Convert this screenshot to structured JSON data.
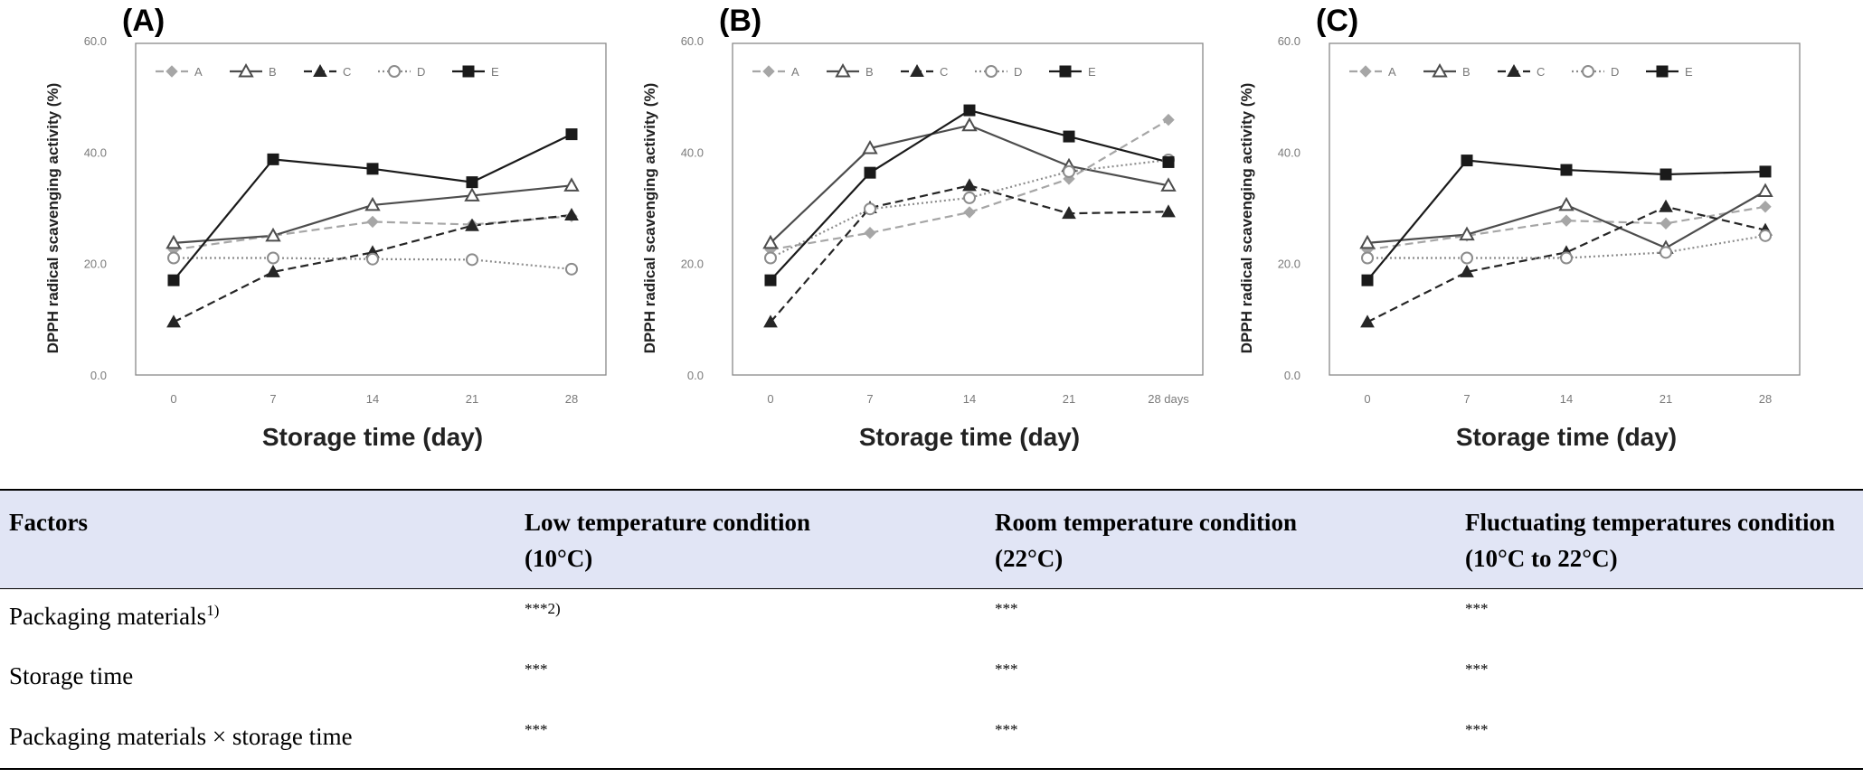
{
  "chart_data": [
    {
      "type": "line",
      "panel": "(A)",
      "xlabel": "Storage time (day)",
      "ylabel": "DPPH radical scavenging activity (%)",
      "categories": [
        "0",
        "7",
        "14",
        "21",
        "28"
      ],
      "yticks": [
        "0.0",
        "20.0",
        "40.0",
        "60.0"
      ],
      "ylim": [
        0,
        60
      ],
      "legend": "top-left",
      "grid": false,
      "series": [
        {
          "name": "A",
          "values": [
            22.5,
            25.0,
            27.5,
            27.0,
            28.5
          ]
        },
        {
          "name": "B",
          "values": [
            23.7,
            25.0,
            30.5,
            32.2,
            34.0
          ]
        },
        {
          "name": "C",
          "values": [
            9.5,
            18.5,
            22.0,
            26.8,
            28.7
          ]
        },
        {
          "name": "D",
          "values": [
            21.0,
            21.0,
            20.8,
            20.7,
            19.0
          ]
        },
        {
          "name": "E",
          "values": [
            17.0,
            38.7,
            37.0,
            34.6,
            43.2
          ]
        }
      ]
    },
    {
      "type": "line",
      "panel": "(B)",
      "xlabel": "Storage time (day)",
      "ylabel": "DPPH radical scavenging activity (%)",
      "categories": [
        "0",
        "7",
        "14",
        "21",
        "28 days"
      ],
      "yticks": [
        "0.0",
        "20.0",
        "40.0",
        "60.0"
      ],
      "ylim": [
        0,
        60
      ],
      "legend": "top-left",
      "grid": false,
      "series": [
        {
          "name": "A",
          "values": [
            22.5,
            25.5,
            29.2,
            35.2,
            45.8
          ]
        },
        {
          "name": "B",
          "values": [
            23.7,
            40.7,
            44.8,
            37.5,
            34.0
          ]
        },
        {
          "name": "C",
          "values": [
            9.5,
            30.0,
            34.0,
            29.0,
            29.3
          ]
        },
        {
          "name": "D",
          "values": [
            21.0,
            29.8,
            31.8,
            36.5,
            38.6
          ]
        },
        {
          "name": "E",
          "values": [
            17.0,
            36.3,
            47.5,
            42.8,
            38.2
          ]
        }
      ]
    },
    {
      "type": "line",
      "panel": "(C)",
      "xlabel": "Storage time (day)",
      "ylabel": "DPPH radical scavenging activity (%)",
      "categories": [
        "0",
        "7",
        "14",
        "21",
        "28"
      ],
      "yticks": [
        "0.0",
        "20.0",
        "40.0",
        "60.0"
      ],
      "ylim": [
        0,
        60
      ],
      "legend": "top-left",
      "grid": false,
      "series": [
        {
          "name": "A",
          "values": [
            22.5,
            25.0,
            27.7,
            27.2,
            30.2
          ]
        },
        {
          "name": "B",
          "values": [
            23.7,
            25.2,
            30.5,
            22.8,
            33.0
          ]
        },
        {
          "name": "C",
          "values": [
            9.5,
            18.5,
            22.0,
            30.2,
            26.0
          ]
        },
        {
          "name": "D",
          "values": [
            21.0,
            21.0,
            21.0,
            22.0,
            25.0
          ]
        },
        {
          "name": "E",
          "values": [
            17.0,
            38.5,
            36.8,
            36.0,
            36.5
          ]
        }
      ]
    }
  ],
  "series_styles": {
    "A": {
      "color": "#a6a6a6",
      "dash": "dashed",
      "marker": "diamond"
    },
    "B": {
      "color": "#4d4d4d",
      "dash": "solid",
      "marker": "open-triangle"
    },
    "C": {
      "color": "#262626",
      "dash": "dashed",
      "marker": "filled-triangle"
    },
    "D": {
      "color": "#8c8c8c",
      "dash": "dotted",
      "marker": "open-circle"
    },
    "E": {
      "color": "#1a1a1a",
      "dash": "solid",
      "marker": "filled-square"
    }
  },
  "table": {
    "headers": {
      "factors": "Factors",
      "low_line1": "Low temperature condition",
      "low_line2": "(10°C)",
      "room_line1": "Room temperature condition",
      "room_line2": "(22°C)",
      "fluct_line1": "Fluctuating temperatures condition",
      "fluct_line2": "(10°C  to  22°C)"
    },
    "rows": [
      {
        "factor": "Packaging materials",
        "factor_sup": "1)",
        "low": "***",
        "low_sup": "2)",
        "room": "***",
        "fluct": "***"
      },
      {
        "factor": "Storage time",
        "low": "***",
        "room": "***",
        "fluct": "***"
      },
      {
        "factor": "Packaging materials × storage time",
        "low": "***",
        "room": "***",
        "fluct": "***"
      }
    ]
  }
}
